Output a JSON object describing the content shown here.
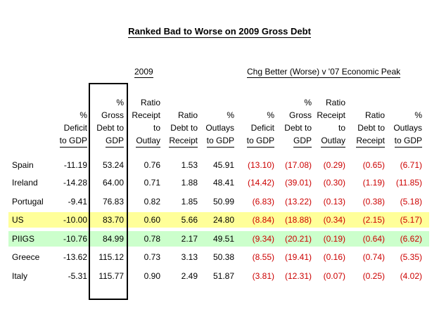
{
  "chart_data": {
    "type": "table",
    "title": "Ranked Bad to Worse on 2009 Gross Debt",
    "groups": [
      {
        "label": "2009"
      },
      {
        "label": "Chg Better (Worse) v '07 Economic Peak"
      }
    ],
    "columns": [
      [
        "%",
        "Deficit",
        "to GDP"
      ],
      [
        "%",
        "Gross",
        "Debt to",
        "GDP"
      ],
      [
        "Ratio",
        "Receipt",
        "to",
        "Outlay"
      ],
      [
        "Ratio",
        "Debt to",
        "Receipt"
      ],
      [
        "%",
        "Outlays",
        "to GDP"
      ],
      [
        "%",
        "Deficit",
        "to GDP"
      ],
      [
        "%",
        "Gross",
        "Debt to",
        "GDP"
      ],
      [
        "Ratio",
        "Receipt",
        "to",
        "Outlay"
      ],
      [
        "Ratio",
        "Debt to",
        "Receipt"
      ],
      [
        "%",
        "Outlays",
        "to GDP"
      ]
    ],
    "rows": [
      {
        "country": "Spain",
        "values": [
          "-11.19",
          "53.24",
          "0.76",
          "1.53",
          "45.91",
          "(13.10)",
          "(17.08)",
          "(0.29)",
          "(0.65)",
          "(6.71)"
        ]
      },
      {
        "country": "Ireland",
        "values": [
          "-14.28",
          "64.00",
          "0.71",
          "1.88",
          "48.41",
          "(14.42)",
          "(39.01)",
          "(0.30)",
          "(1.19)",
          "(11.85)"
        ]
      },
      {
        "country": "Portugal",
        "values": [
          "-9.41",
          "76.83",
          "0.82",
          "1.85",
          "50.99",
          "(6.83)",
          "(13.22)",
          "(0.13)",
          "(0.38)",
          "(5.18)"
        ]
      },
      {
        "country": "US",
        "values": [
          "-10.00",
          "83.70",
          "0.60",
          "5.66",
          "24.80",
          "(8.84)",
          "(18.88)",
          "(0.34)",
          "(2.15)",
          "(5.17)"
        ]
      },
      {
        "country": "PIIGS",
        "values": [
          "-10.76",
          "84.99",
          "0.78",
          "2.17",
          "49.51",
          "(9.34)",
          "(20.21)",
          "(0.19)",
          "(0.64)",
          "(6.62)"
        ]
      },
      {
        "country": "Greece",
        "values": [
          "-13.62",
          "115.12",
          "0.73",
          "3.13",
          "50.38",
          "(8.55)",
          "(19.41)",
          "(0.16)",
          "(0.74)",
          "(5.35)"
        ]
      },
      {
        "country": "Italy",
        "values": [
          "-5.31",
          "115.77",
          "0.90",
          "2.49",
          "51.87",
          "(3.81)",
          "(12.31)",
          "(0.07)",
          "(0.25)",
          "(4.02)"
        ]
      }
    ],
    "highlights": {
      "US": "#ffff99",
      "PIIGS": "#ccffcc"
    },
    "negative_color": "#cc0000"
  }
}
